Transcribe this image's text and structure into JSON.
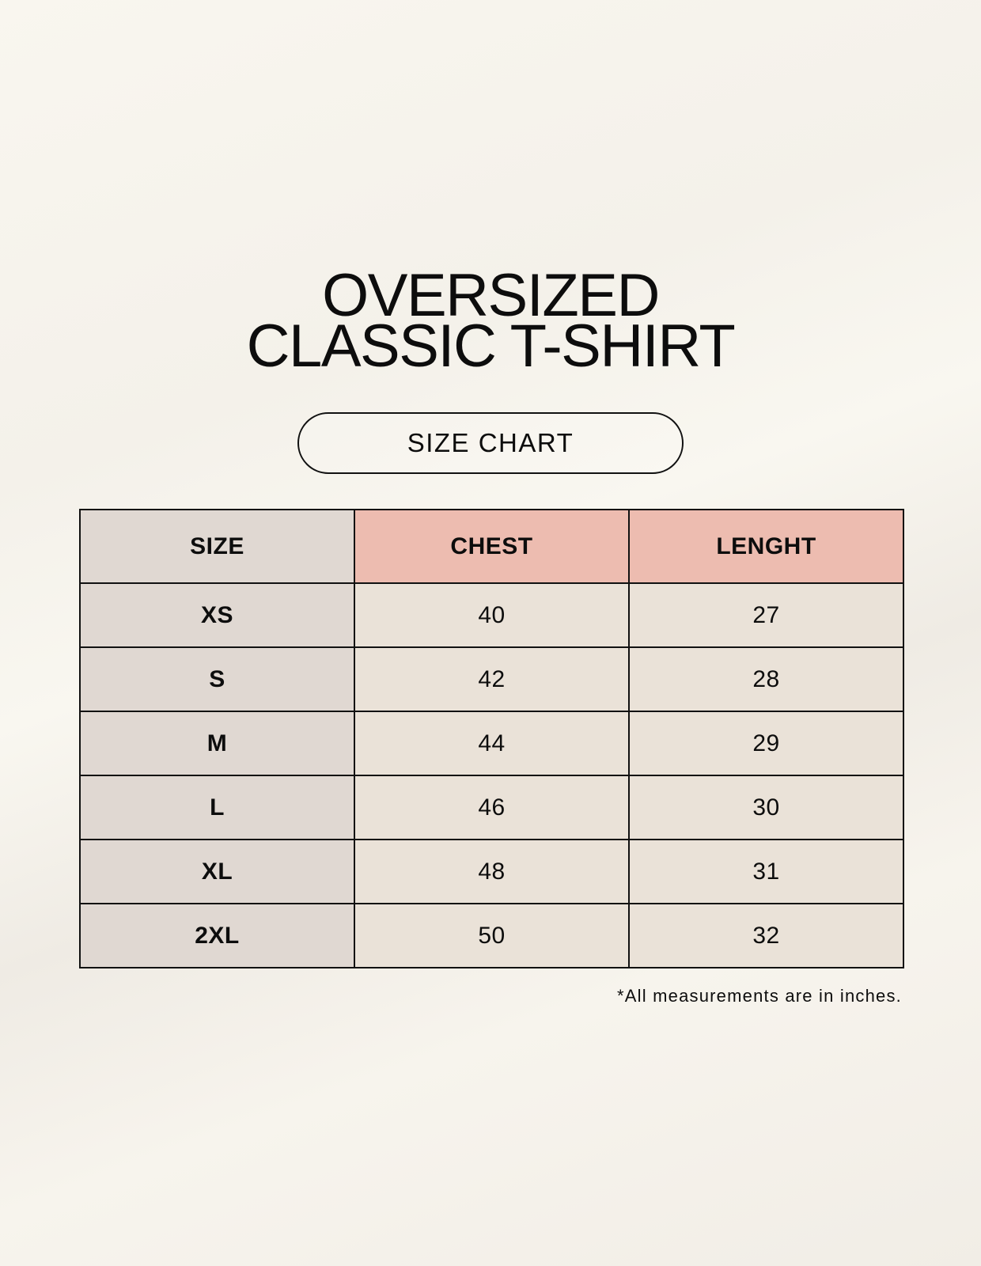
{
  "title": {
    "line1": "OVERSIZED",
    "line2": "CLASSIC T-SHIRT"
  },
  "badge": "SIZE CHART",
  "table": {
    "headers": [
      "SIZE",
      "CHEST",
      "LENGHT"
    ],
    "rows": [
      [
        "XS",
        "40",
        "27"
      ],
      [
        "S",
        "42",
        "28"
      ],
      [
        "M",
        "44",
        "29"
      ],
      [
        "L",
        "46",
        "30"
      ],
      [
        "XL",
        "48",
        "31"
      ],
      [
        "2XL",
        "50",
        "32"
      ]
    ]
  },
  "footnote": "*All measurements are in inches.",
  "colors": {
    "background": "#f8f5ee",
    "size_column": "#e0d8d2",
    "header_accent": "#edbcb0",
    "cell": "#eae2d8"
  }
}
